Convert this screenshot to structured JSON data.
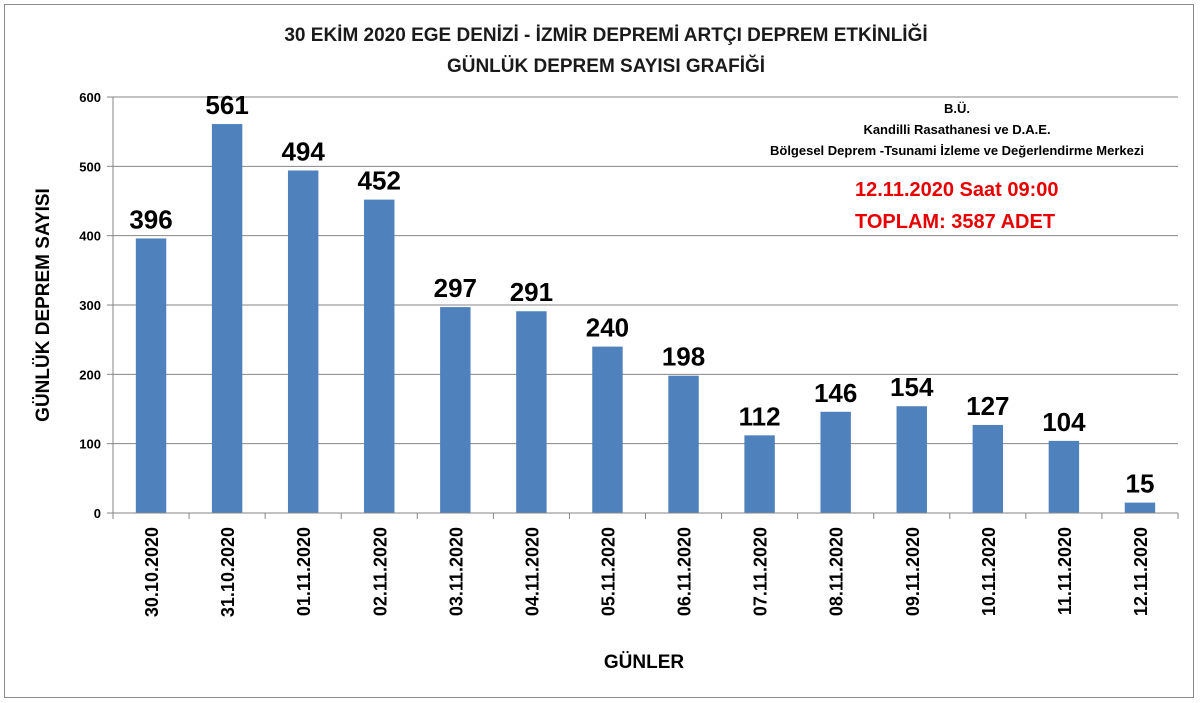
{
  "chart_data": {
    "type": "bar",
    "title": "30 EKİM 2020  EGE DENİZİ - İZMİR DEPREMİ  ARTÇI DEPREM ETKİNLİĞİ",
    "subtitle": "GÜNLÜK DEPREM SAYISI GRAFİĞİ",
    "xlabel": "GÜNLER",
    "ylabel": "GÜNLÜK DEPREM SAYISI",
    "ylim": [
      0,
      600
    ],
    "yticks": [
      0,
      100,
      200,
      300,
      400,
      500,
      600
    ],
    "grid": true,
    "legend": "none",
    "bar_color": "#4f81bd",
    "categories": [
      "30.10.2020",
      "31.10.2020",
      "01.11.2020",
      "02.11.2020",
      "03.11.2020",
      "04.11.2020",
      "05.11.2020",
      "06.11.2020",
      "07.11.2020",
      "08.11.2020",
      "09.11.2020",
      "10.11.2020",
      "11.11.2020",
      "12.11.2020"
    ],
    "values": [
      396,
      561,
      494,
      452,
      297,
      291,
      240,
      198,
      112,
      146,
      154,
      127,
      104,
      15
    ]
  },
  "annotations": {
    "institution_line1": "B.Ü.",
    "institution_line2": "Kandilli Rasathanesi ve D.A.E.",
    "institution_line3": "Bölgesel Deprem -Tsunami İzleme ve Değerlendirme Merkezi",
    "date_line": "12.11.2020  Saat 09:00",
    "total_line": "TOPLAM: 3587 ADET",
    "highlight_color": "#e60000"
  }
}
